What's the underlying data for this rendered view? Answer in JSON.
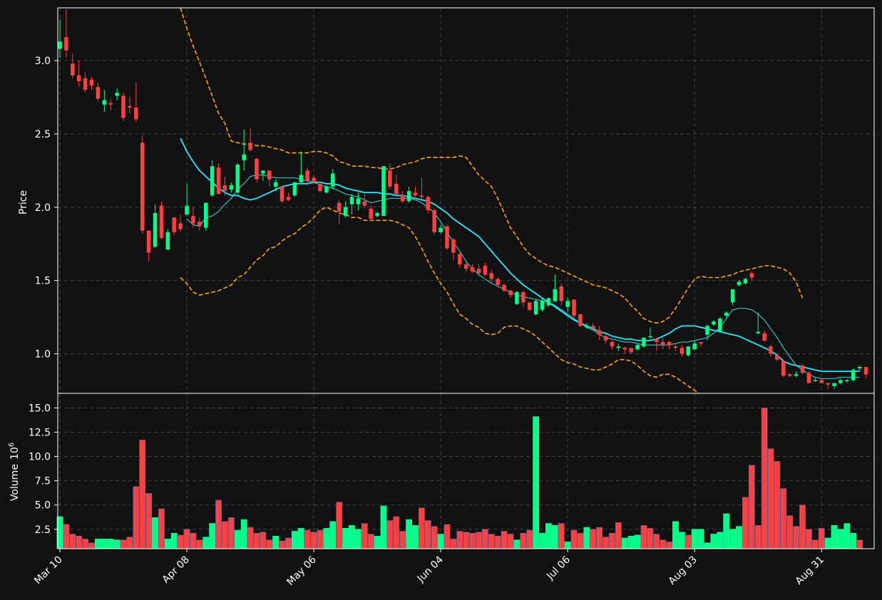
{
  "chart_data": {
    "type": "candlestick",
    "colors": {
      "background": "#111111",
      "up": "#00ff88",
      "down": "#ff4040",
      "ma_fast": "#33e0e0",
      "ma_slow": "#22eaff",
      "band": "#ffa500",
      "grid": "#444444",
      "frame": "#ffffff"
    },
    "ylabel": "Price",
    "volume_ylabel": "Volume",
    "volume_exp": "10",
    "volume_exp_sup": "6",
    "ylim": [
      0.73,
      3.36
    ],
    "yticks": [
      1.0,
      1.5,
      2.0,
      2.5,
      3.0
    ],
    "ytick_labels": [
      "1.0",
      "1.5",
      "2.0",
      "2.5",
      "3.0"
    ],
    "volume_ylim": [
      0.5,
      16.5
    ],
    "volume_yticks": [
      2.5,
      5.0,
      7.5,
      10.0,
      12.5,
      15.0
    ],
    "volume_ytick_labels": [
      "2.5",
      "5.0",
      "7.5",
      "10.0",
      "12.5",
      "15.0"
    ],
    "xtick_labels": [
      {
        "label": "Mar 10",
        "index": 0
      },
      {
        "label": "Apr 08",
        "index": 20
      },
      {
        "label": "May 06",
        "index": 40
      },
      {
        "label": "Jun 04",
        "index": 60
      },
      {
        "label": "Jul 06",
        "index": 80
      },
      {
        "label": "Aug 03",
        "index": 100
      },
      {
        "label": "Aug 31",
        "index": 120
      }
    ],
    "ohlc": [
      [
        3.08,
        3.28,
        3.02,
        3.13
      ],
      [
        3.16,
        3.35,
        3.02,
        3.07
      ],
      [
        2.98,
        3.05,
        2.88,
        2.9
      ],
      [
        2.9,
        3.0,
        2.82,
        2.86
      ],
      [
        2.88,
        2.92,
        2.78,
        2.8
      ],
      [
        2.87,
        2.89,
        2.8,
        2.83
      ],
      [
        2.82,
        2.85,
        2.72,
        2.74
      ],
      [
        2.7,
        2.8,
        2.65,
        2.73
      ],
      [
        2.71,
        2.74,
        2.66,
        2.7
      ],
      [
        2.76,
        2.81,
        2.73,
        2.78
      ],
      [
        2.76,
        2.78,
        2.59,
        2.61
      ],
      [
        2.69,
        2.75,
        2.64,
        2.68
      ],
      [
        2.68,
        2.85,
        2.58,
        2.6
      ],
      [
        2.44,
        2.49,
        1.82,
        1.84
      ],
      [
        1.84,
        1.84,
        1.63,
        1.69
      ],
      [
        1.73,
        2.02,
        1.72,
        1.96
      ],
      [
        2.01,
        2.04,
        1.78,
        1.79
      ],
      [
        1.71,
        1.85,
        1.71,
        1.83
      ],
      [
        1.93,
        1.93,
        1.81,
        1.83
      ],
      [
        1.89,
        1.95,
        1.83,
        1.85
      ],
      [
        1.95,
        2.16,
        1.94,
        2.01
      ],
      [
        1.94,
        2.0,
        1.86,
        1.89
      ],
      [
        1.9,
        1.93,
        1.84,
        1.87
      ],
      [
        1.86,
        2.03,
        1.84,
        2.03
      ],
      [
        2.08,
        2.32,
        2.07,
        2.28
      ],
      [
        2.27,
        2.3,
        2.09,
        2.09
      ],
      [
        2.15,
        2.21,
        2.08,
        2.11
      ],
      [
        2.12,
        2.17,
        2.1,
        2.15
      ],
      [
        2.1,
        2.3,
        2.09,
        2.29
      ],
      [
        2.32,
        2.53,
        2.25,
        2.36
      ],
      [
        2.44,
        2.54,
        2.38,
        2.39
      ],
      [
        2.33,
        2.34,
        2.17,
        2.19
      ],
      [
        2.23,
        2.25,
        2.18,
        2.25
      ],
      [
        2.25,
        2.25,
        2.14,
        2.19
      ],
      [
        2.14,
        2.19,
        2.11,
        2.17
      ],
      [
        2.14,
        2.14,
        2.03,
        2.04
      ],
      [
        2.07,
        2.1,
        2.04,
        2.05
      ],
      [
        2.08,
        2.17,
        2.07,
        2.17
      ],
      [
        2.17,
        2.38,
        2.16,
        2.22
      ],
      [
        2.25,
        2.27,
        2.15,
        2.18
      ],
      [
        2.2,
        2.22,
        2.17,
        2.17
      ],
      [
        2.16,
        2.16,
        2.1,
        2.11
      ],
      [
        2.1,
        2.15,
        2.09,
        2.14
      ],
      [
        2.14,
        2.26,
        2.12,
        2.23
      ],
      [
        2.03,
        2.05,
        1.88,
        1.97
      ],
      [
        1.94,
        2.04,
        1.93,
        2.0
      ],
      [
        2.02,
        2.09,
        1.95,
        2.07
      ],
      [
        2.02,
        2.1,
        1.98,
        2.06
      ],
      [
        2.04,
        2.1,
        1.99,
        2.01
      ],
      [
        1.99,
        2.01,
        1.92,
        1.92
      ],
      [
        1.94,
        1.97,
        1.93,
        1.96
      ],
      [
        1.94,
        2.28,
        1.94,
        2.28
      ],
      [
        2.25,
        2.3,
        2.12,
        2.14
      ],
      [
        2.16,
        2.22,
        2.08,
        2.09
      ],
      [
        2.08,
        2.11,
        2.03,
        2.04
      ],
      [
        2.04,
        2.14,
        2.03,
        2.11
      ],
      [
        2.1,
        2.14,
        2.07,
        2.08
      ],
      [
        2.08,
        2.2,
        2.05,
        2.07
      ],
      [
        2.07,
        2.08,
        1.96,
        1.98
      ],
      [
        1.98,
        1.99,
        1.81,
        1.83
      ],
      [
        1.83,
        1.88,
        1.82,
        1.86
      ],
      [
        1.87,
        1.88,
        1.71,
        1.72
      ],
      [
        1.78,
        1.79,
        1.64,
        1.69
      ],
      [
        1.68,
        1.69,
        1.59,
        1.61
      ],
      [
        1.61,
        1.63,
        1.56,
        1.58
      ],
      [
        1.59,
        1.61,
        1.55,
        1.56
      ],
      [
        1.58,
        1.61,
        1.53,
        1.55
      ],
      [
        1.6,
        1.62,
        1.53,
        1.54
      ],
      [
        1.55,
        1.57,
        1.49,
        1.51
      ],
      [
        1.51,
        1.52,
        1.45,
        1.47
      ],
      [
        1.47,
        1.48,
        1.42,
        1.43
      ],
      [
        1.43,
        1.44,
        1.38,
        1.4
      ],
      [
        1.34,
        1.43,
        1.33,
        1.42
      ],
      [
        1.42,
        1.43,
        1.32,
        1.35
      ],
      [
        1.35,
        1.35,
        1.29,
        1.3
      ],
      [
        1.27,
        1.37,
        1.26,
        1.36
      ],
      [
        1.3,
        1.38,
        1.29,
        1.36
      ],
      [
        1.33,
        1.38,
        1.32,
        1.38
      ],
      [
        1.36,
        1.54,
        1.35,
        1.44
      ],
      [
        1.46,
        1.48,
        1.33,
        1.36
      ],
      [
        1.32,
        1.38,
        1.29,
        1.36
      ],
      [
        1.37,
        1.37,
        1.24,
        1.26
      ],
      [
        1.27,
        1.27,
        1.18,
        1.19
      ],
      [
        1.18,
        1.21,
        1.17,
        1.19
      ],
      [
        1.19,
        1.21,
        1.16,
        1.17
      ],
      [
        1.16,
        1.19,
        1.09,
        1.13
      ],
      [
        1.12,
        1.13,
        1.07,
        1.09
      ],
      [
        1.08,
        1.09,
        1.03,
        1.05
      ],
      [
        1.04,
        1.07,
        1.02,
        1.05
      ],
      [
        1.04,
        1.05,
        1.0,
        1.03
      ],
      [
        1.04,
        1.04,
        1.0,
        1.01
      ],
      [
        1.03,
        1.07,
        1.02,
        1.06
      ],
      [
        1.05,
        1.1,
        1.04,
        1.11
      ],
      [
        1.12,
        1.18,
        1.1,
        1.12
      ],
      [
        1.1,
        1.11,
        1.02,
        1.08
      ],
      [
        1.08,
        1.11,
        1.03,
        1.06
      ],
      [
        1.08,
        1.09,
        1.03,
        1.06
      ],
      [
        1.05,
        1.06,
        1.02,
        1.04
      ],
      [
        1.04,
        1.06,
        0.98,
        1.0
      ],
      [
        0.99,
        1.05,
        0.98,
        1.05
      ],
      [
        1.03,
        1.09,
        1.03,
        1.07
      ],
      [
        1.08,
        1.08,
        1.05,
        1.07
      ],
      [
        1.13,
        1.2,
        1.09,
        1.19
      ],
      [
        1.2,
        1.23,
        1.19,
        1.22
      ],
      [
        1.15,
        1.25,
        1.15,
        1.24
      ],
      [
        1.26,
        1.29,
        1.25,
        1.28
      ],
      [
        1.35,
        1.44,
        1.33,
        1.44
      ],
      [
        1.47,
        1.5,
        1.46,
        1.49
      ],
      [
        1.48,
        1.52,
        1.47,
        1.51
      ],
      [
        1.55,
        1.56,
        1.5,
        1.52
      ],
      [
        1.14,
        1.28,
        1.13,
        1.15
      ],
      [
        1.14,
        1.16,
        1.08,
        1.09
      ],
      [
        1.05,
        1.06,
        0.98,
        1.0
      ],
      [
        0.99,
        1.0,
        0.95,
        0.96
      ],
      [
        0.95,
        0.96,
        0.84,
        0.85
      ],
      [
        0.86,
        0.87,
        0.84,
        0.85
      ],
      [
        0.85,
        0.88,
        0.84,
        0.86
      ],
      [
        0.92,
        0.93,
        0.86,
        0.87
      ],
      [
        0.87,
        0.88,
        0.8,
        0.8
      ],
      [
        0.82,
        0.84,
        0.81,
        0.82
      ],
      [
        0.82,
        0.83,
        0.8,
        0.8
      ],
      [
        0.8,
        0.8,
        0.76,
        0.79
      ],
      [
        0.78,
        0.8,
        0.76,
        0.8
      ],
      [
        0.8,
        0.83,
        0.79,
        0.82
      ],
      [
        0.82,
        0.83,
        0.8,
        0.82
      ],
      [
        0.82,
        0.9,
        0.81,
        0.89
      ],
      [
        0.9,
        0.92,
        0.88,
        0.91
      ],
      [
        0.91,
        0.91,
        0.83,
        0.86
      ]
    ],
    "volume": [
      3.8,
      3.0,
      2.0,
      1.8,
      1.5,
      1.1,
      1.5,
      1.5,
      1.5,
      1.4,
      1.4,
      1.7,
      6.9,
      11.7,
      6.2,
      3.7,
      4.6,
      1.5,
      2.1,
      1.9,
      2.5,
      2.1,
      1.4,
      1.7,
      3.1,
      5.5,
      3.3,
      3.7,
      2.4,
      3.5,
      2.7,
      2.1,
      2.2,
      1.4,
      1.8,
      1.3,
      1.6,
      2.3,
      2.6,
      2.4,
      2.2,
      2.4,
      2.6,
      3.3,
      5.3,
      2.6,
      2.9,
      2.5,
      3.1,
      2.0,
      1.8,
      4.9,
      3.4,
      3.8,
      2.3,
      3.5,
      2.9,
      4.7,
      3.4,
      2.8,
      2.0,
      3.0,
      1.5,
      2.3,
      2.2,
      2.1,
      2.2,
      2.5,
      2.0,
      1.8,
      2.3,
      2.0,
      1.4,
      2.1,
      2.4,
      14.1,
      2.1,
      3.1,
      2.9,
      3.1,
      1.2,
      2.4,
      2.1,
      2.7,
      2.5,
      2.7,
      1.7,
      2.1,
      3.2,
      1.6,
      1.8,
      1.9,
      2.9,
      2.6,
      2.0,
      1.4,
      1.2,
      3.3,
      2.2,
      1.9,
      2.5,
      2.5,
      1.1,
      2.0,
      2.2,
      4.1,
      2.5,
      2.8,
      5.8,
      9.1,
      2.9,
      15.0,
      10.8,
      9.5,
      6.7,
      3.9,
      2.8,
      5.0,
      2.5,
      1.4,
      2.6,
      1.6,
      2.9,
      2.5,
      3.1,
      2.1,
      1.4
    ],
    "volume_up": [
      1,
      0,
      0,
      0,
      0,
      0,
      1,
      1,
      1,
      1,
      0,
      0,
      0,
      0,
      0,
      1,
      0,
      1,
      1,
      0,
      0,
      0,
      0,
      1,
      1,
      0,
      0,
      0,
      1,
      1,
      0,
      0,
      0,
      0,
      1,
      0,
      0,
      1,
      1,
      0,
      0,
      0,
      1,
      1,
      0,
      1,
      1,
      1,
      0,
      0,
      1,
      1,
      0,
      0,
      0,
      1,
      1,
      0,
      0,
      0,
      1,
      0,
      0,
      0,
      0,
      0,
      0,
      0,
      0,
      0,
      0,
      0,
      1,
      0,
      0,
      1,
      1,
      1,
      1,
      0,
      1,
      0,
      0,
      1,
      0,
      0,
      0,
      0,
      0,
      1,
      1,
      1,
      0,
      0,
      0,
      0,
      0,
      1,
      1,
      0,
      1,
      1,
      1,
      1,
      1,
      1,
      1,
      1,
      0,
      0,
      0,
      0,
      0,
      0,
      0,
      0,
      0,
      0,
      0,
      0,
      0,
      1,
      1,
      1,
      1,
      1,
      0
    ],
    "ma_fast": [
      null,
      null,
      null,
      null,
      null,
      null,
      null,
      null,
      null,
      null,
      null,
      null,
      null,
      null,
      null,
      null,
      null,
      null,
      null,
      null,
      1.92,
      1.88,
      1.87,
      1.93,
      1.94,
      1.97,
      2.02,
      2.06,
      2.12,
      2.16,
      2.21,
      2.22,
      2.22,
      2.21,
      2.2,
      2.2,
      2.2,
      2.2,
      2.19,
      2.18,
      2.17,
      2.15,
      2.14,
      2.13,
      2.11,
      2.09,
      2.08,
      2.07,
      2.05,
      2.03,
      2.04,
      2.05,
      2.06,
      2.06,
      2.06,
      2.06,
      2.05,
      2.03,
      2.0,
      1.96,
      1.9,
      1.83,
      1.76,
      1.7,
      1.63,
      1.58,
      1.54,
      1.51,
      1.48,
      1.46,
      1.44,
      1.42,
      1.4,
      1.39,
      1.38,
      1.37,
      1.36,
      1.35,
      1.33,
      1.3,
      1.27,
      1.24,
      1.21,
      1.18,
      1.16,
      1.13,
      1.11,
      1.1,
      1.09,
      1.08,
      1.08,
      1.07,
      1.06,
      1.06,
      1.06,
      1.06,
      1.06,
      1.07,
      1.08,
      1.08,
      1.09,
      1.1,
      1.11,
      1.14,
      1.18,
      1.24,
      1.3,
      1.31,
      1.31,
      1.3,
      1.27,
      1.23,
      1.17,
      1.11,
      1.04,
      0.98,
      0.92,
      0.89,
      0.86,
      0.84,
      0.83,
      0.83,
      0.83,
      0.84,
      0.84,
      0.84,
      0.84
    ],
    "ma_slow": [
      null,
      null,
      null,
      null,
      null,
      null,
      null,
      null,
      null,
      null,
      null,
      null,
      null,
      null,
      null,
      null,
      null,
      null,
      null,
      2.47,
      2.38,
      2.31,
      2.25,
      2.21,
      2.17,
      2.13,
      2.1,
      2.08,
      2.08,
      2.06,
      2.05,
      2.06,
      2.08,
      2.1,
      2.12,
      2.14,
      2.15,
      2.16,
      2.16,
      2.16,
      2.17,
      2.17,
      2.16,
      2.16,
      2.15,
      2.13,
      2.12,
      2.11,
      2.1,
      2.1,
      2.1,
      2.09,
      2.09,
      2.08,
      2.08,
      2.07,
      2.06,
      2.05,
      2.04,
      2.02,
      1.99,
      1.96,
      1.92,
      1.89,
      1.86,
      1.83,
      1.8,
      1.75,
      1.7,
      1.65,
      1.6,
      1.55,
      1.51,
      1.47,
      1.44,
      1.41,
      1.38,
      1.35,
      1.32,
      1.29,
      1.26,
      1.23,
      1.21,
      1.19,
      1.17,
      1.15,
      1.14,
      1.12,
      1.11,
      1.1,
      1.1,
      1.09,
      1.09,
      1.09,
      1.1,
      1.12,
      1.14,
      1.17,
      1.19,
      1.19,
      1.19,
      1.18,
      1.17,
      1.16,
      1.15,
      1.14,
      1.13,
      1.12,
      1.1,
      1.08,
      1.06,
      1.04,
      1.02,
      0.99,
      0.95,
      0.93,
      0.92,
      0.91,
      0.9,
      0.89,
      0.88,
      0.88,
      0.88,
      0.88,
      0.88,
      0.88,
      0.88
    ],
    "band_upper": [
      null,
      null,
      null,
      null,
      null,
      null,
      null,
      null,
      null,
      null,
      null,
      null,
      null,
      null,
      null,
      null,
      null,
      null,
      null,
      3.36,
      3.22,
      3.1,
      2.99,
      2.88,
      2.76,
      2.64,
      2.57,
      2.45,
      2.44,
      2.43,
      2.43,
      2.42,
      2.42,
      2.41,
      2.4,
      2.39,
      2.37,
      2.37,
      2.37,
      2.37,
      2.38,
      2.38,
      2.37,
      2.35,
      2.31,
      2.3,
      2.28,
      2.28,
      2.28,
      2.27,
      2.27,
      2.26,
      2.26,
      2.27,
      2.29,
      2.3,
      2.31,
      2.33,
      2.34,
      2.34,
      2.34,
      2.34,
      2.34,
      2.35,
      2.34,
      2.28,
      2.22,
      2.18,
      2.14,
      2.06,
      1.96,
      1.86,
      1.8,
      1.73,
      1.68,
      1.65,
      1.62,
      1.6,
      1.59,
      1.57,
      1.55,
      1.53,
      1.51,
      1.49,
      1.47,
      1.46,
      1.45,
      1.43,
      1.41,
      1.38,
      1.33,
      1.29,
      1.24,
      1.22,
      1.21,
      1.22,
      1.25,
      1.31,
      1.38,
      1.45,
      1.51,
      1.53,
      1.52,
      1.52,
      1.52,
      1.53,
      1.54,
      1.56,
      1.57,
      1.58,
      1.59,
      1.6,
      1.6,
      1.59,
      1.58,
      1.55,
      1.49,
      1.38
    ],
    "band_lower": [
      null,
      null,
      null,
      null,
      null,
      null,
      null,
      null,
      null,
      null,
      null,
      null,
      null,
      null,
      null,
      null,
      null,
      null,
      null,
      1.52,
      1.48,
      1.42,
      1.4,
      1.41,
      1.42,
      1.43,
      1.45,
      1.47,
      1.52,
      1.54,
      1.59,
      1.64,
      1.67,
      1.72,
      1.73,
      1.77,
      1.8,
      1.82,
      1.86,
      1.89,
      1.93,
      1.98,
      2.0,
      1.98,
      1.96,
      1.95,
      1.93,
      1.93,
      1.91,
      1.91,
      1.91,
      1.91,
      1.91,
      1.9,
      1.88,
      1.86,
      1.8,
      1.72,
      1.63,
      1.55,
      1.48,
      1.42,
      1.34,
      1.27,
      1.24,
      1.2,
      1.18,
      1.14,
      1.13,
      1.14,
      1.18,
      1.19,
      1.19,
      1.17,
      1.15,
      1.12,
      1.08,
      1.04,
      1.0,
      0.96,
      0.94,
      0.93,
      0.91,
      0.9,
      0.89,
      0.89,
      0.91,
      0.93,
      0.96,
      0.96,
      0.95,
      0.92,
      0.88,
      0.85,
      0.84,
      0.86,
      0.86,
      0.84,
      0.81,
      0.78,
      0.75,
      0.72,
      0.7,
      0.68,
      0.66,
      0.64,
      0.62,
      0.6,
      0.58,
      0.56,
      0.55,
      0.53,
      0.52,
      0.51,
      0.5,
      0.49,
      0.48,
      0.47
    ]
  }
}
